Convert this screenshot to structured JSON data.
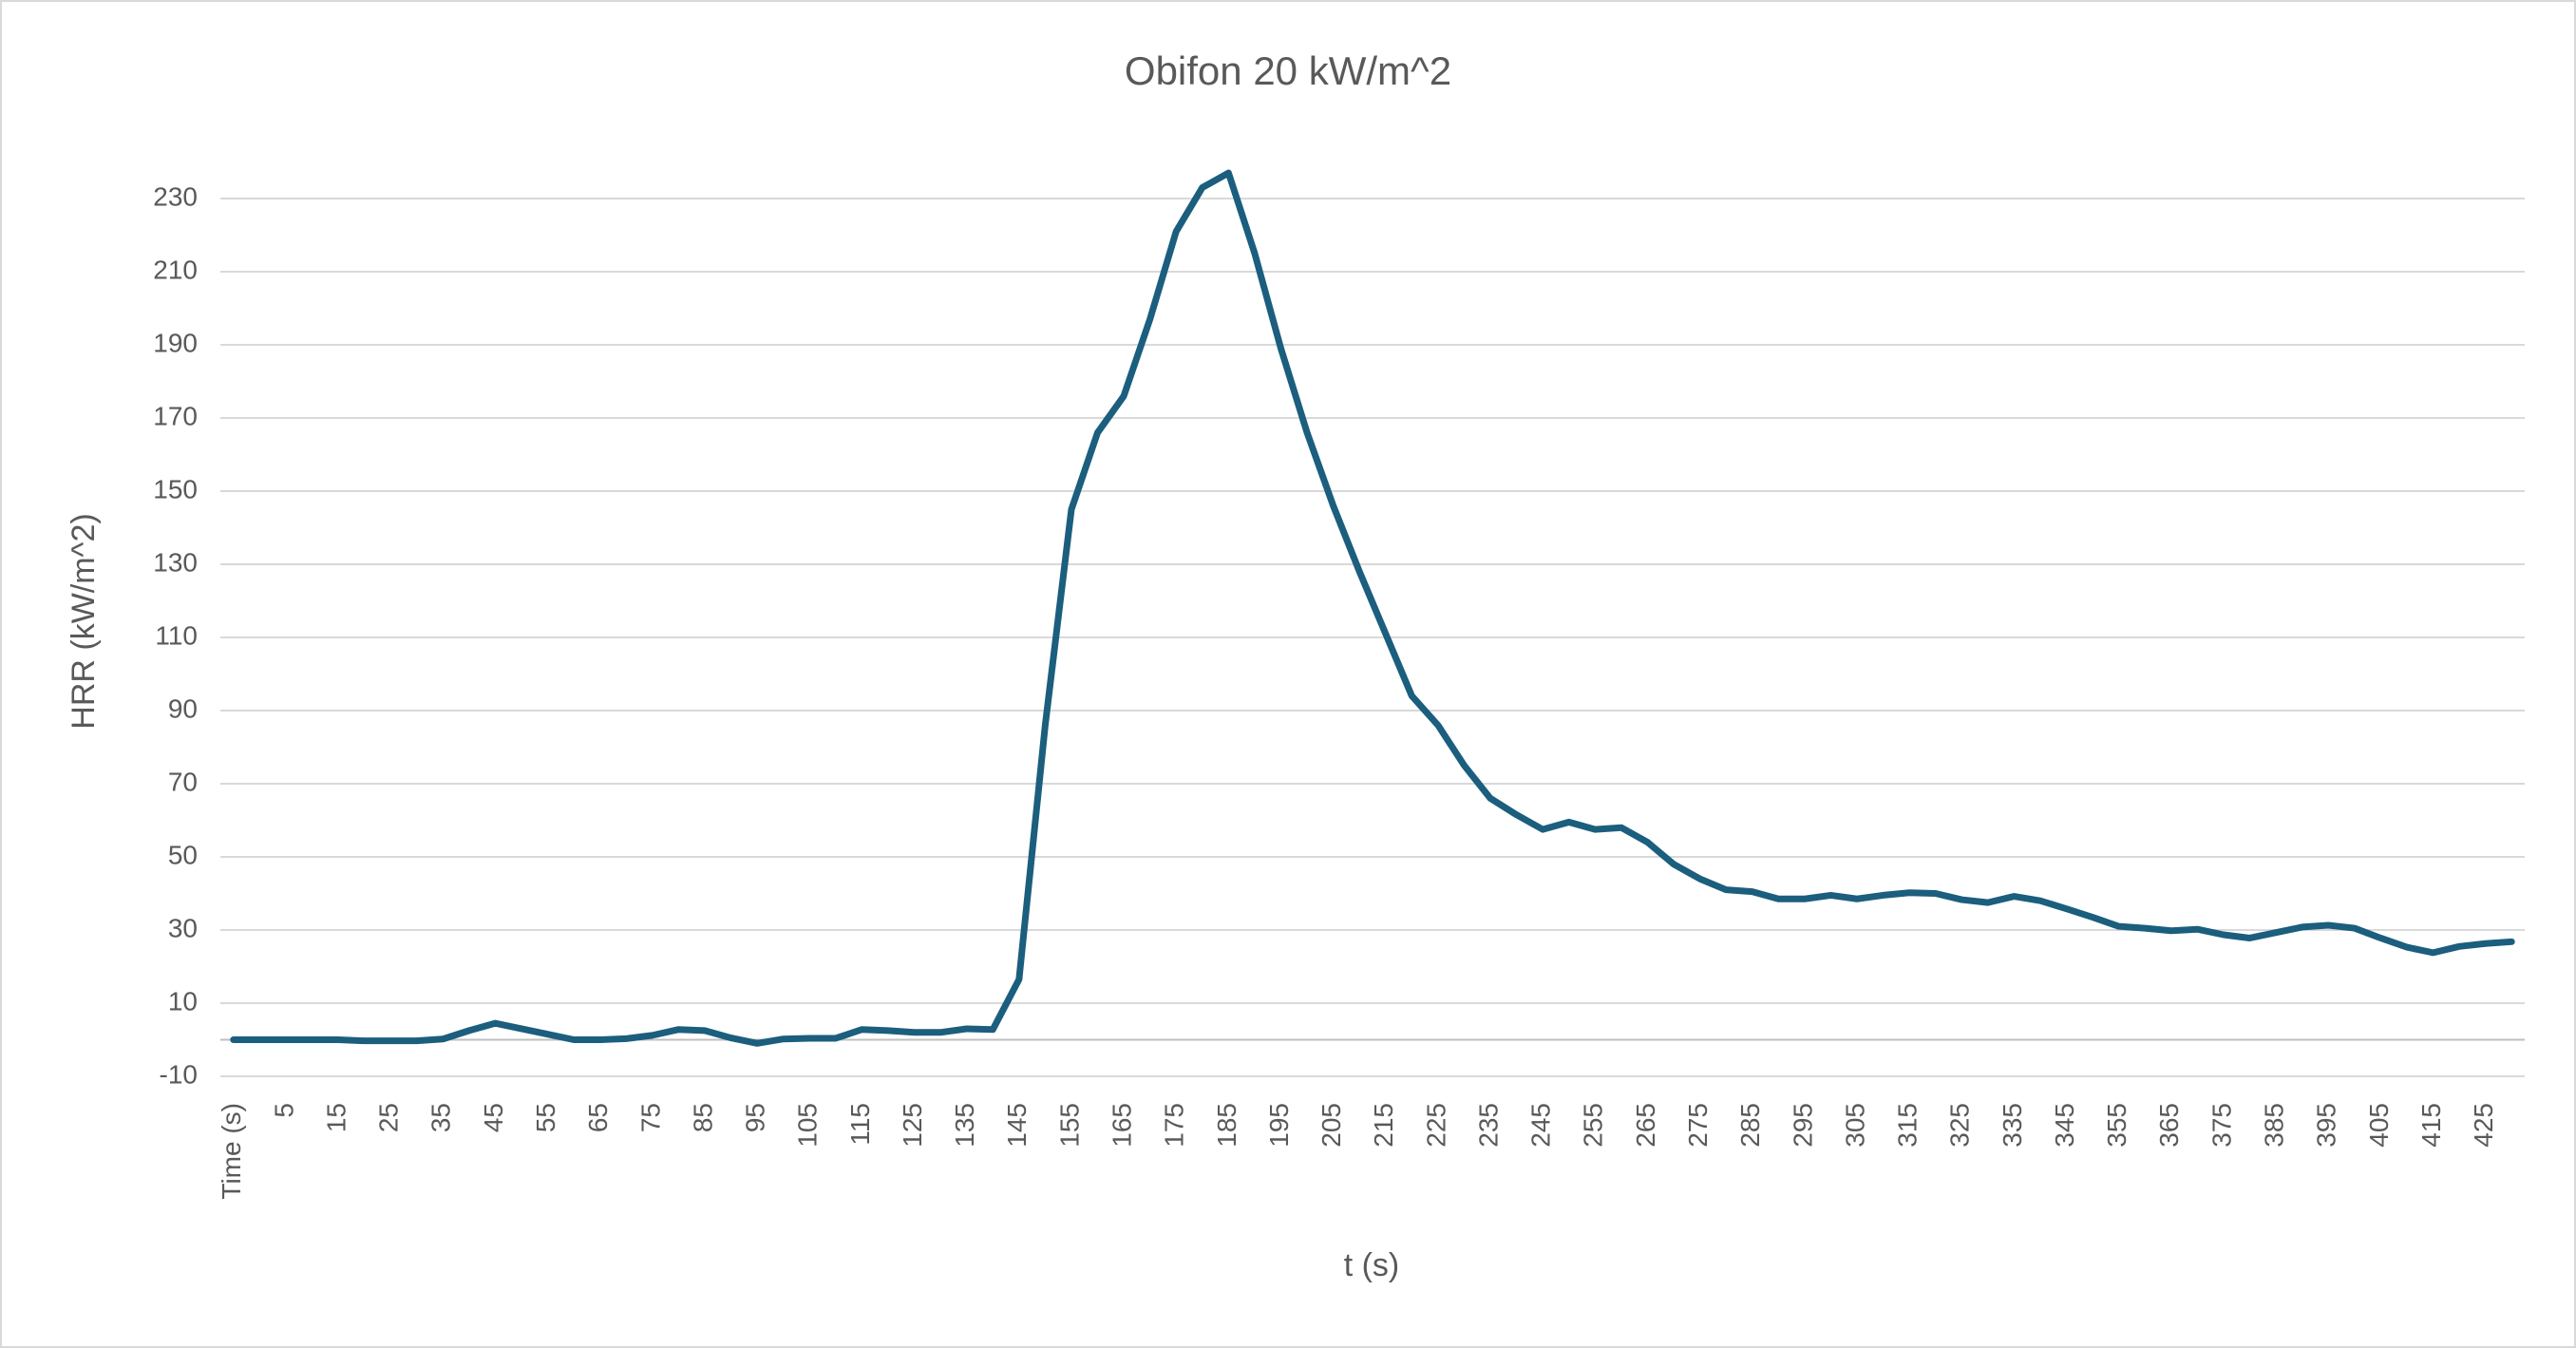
{
  "chart_data": {
    "type": "line",
    "title": "Obifon 20 kW/m^2",
    "x_label": "t (s)",
    "y_label": "HRR (kW/m^2)",
    "categories": [
      "Time (s)",
      null,
      "5",
      null,
      "15",
      null,
      "25",
      null,
      "35",
      null,
      "45",
      null,
      "55",
      null,
      "65",
      null,
      "75",
      null,
      "85",
      null,
      "95",
      null,
      "105",
      null,
      "115",
      null,
      "125",
      null,
      "135",
      null,
      "145",
      null,
      "155",
      null,
      "165",
      null,
      "175",
      null,
      "185",
      null,
      "195",
      null,
      "205",
      null,
      "215",
      null,
      "225",
      null,
      "235",
      null,
      "245",
      null,
      "255",
      null,
      "265",
      null,
      "275",
      null,
      "285",
      null,
      "295",
      null,
      "305",
      null,
      "315",
      null,
      "325",
      null,
      "335",
      null,
      "345",
      null,
      "355",
      null,
      "365",
      null,
      "375",
      null,
      "385",
      null,
      "395",
      null,
      "405",
      null,
      "415",
      null,
      "425",
      null
    ],
    "series": [
      {
        "name": "HRR",
        "color": "#1b5e7e",
        "values": [
          0,
          0,
          0,
          0,
          0,
          -0.3,
          -0.3,
          -0.3,
          0.2,
          2.5,
          4.5,
          3,
          1.5,
          0,
          0,
          0.3,
          1.2,
          2.8,
          2.5,
          0.5,
          -1,
          0.2,
          0.4,
          0.4,
          2.8,
          2.5,
          2,
          2,
          3,
          2.8,
          16.5,
          86,
          145,
          166,
          176,
          197,
          221,
          233,
          237,
          215,
          189,
          166,
          146,
          128,
          111,
          94,
          86,
          75,
          66,
          61.5,
          57.5,
          59.5,
          57.5,
          58,
          54,
          48,
          44,
          41,
          40.5,
          38.5,
          38.5,
          39.5,
          38.5,
          39.5,
          40.2,
          40,
          38.3,
          37.5,
          39.2,
          38,
          35.8,
          33.5,
          31,
          30.5,
          29.8,
          30.2,
          28.7,
          27.8,
          29.3,
          30.8,
          31.3,
          30.5,
          27.8,
          25.3,
          23.8,
          25.5,
          26.3,
          26.8
        ]
      }
    ],
    "ylim": [
      -10,
      230
    ],
    "yticks": [
      -10,
      10,
      30,
      50,
      70,
      90,
      110,
      130,
      150,
      170,
      190,
      210,
      230
    ],
    "grid": true
  }
}
